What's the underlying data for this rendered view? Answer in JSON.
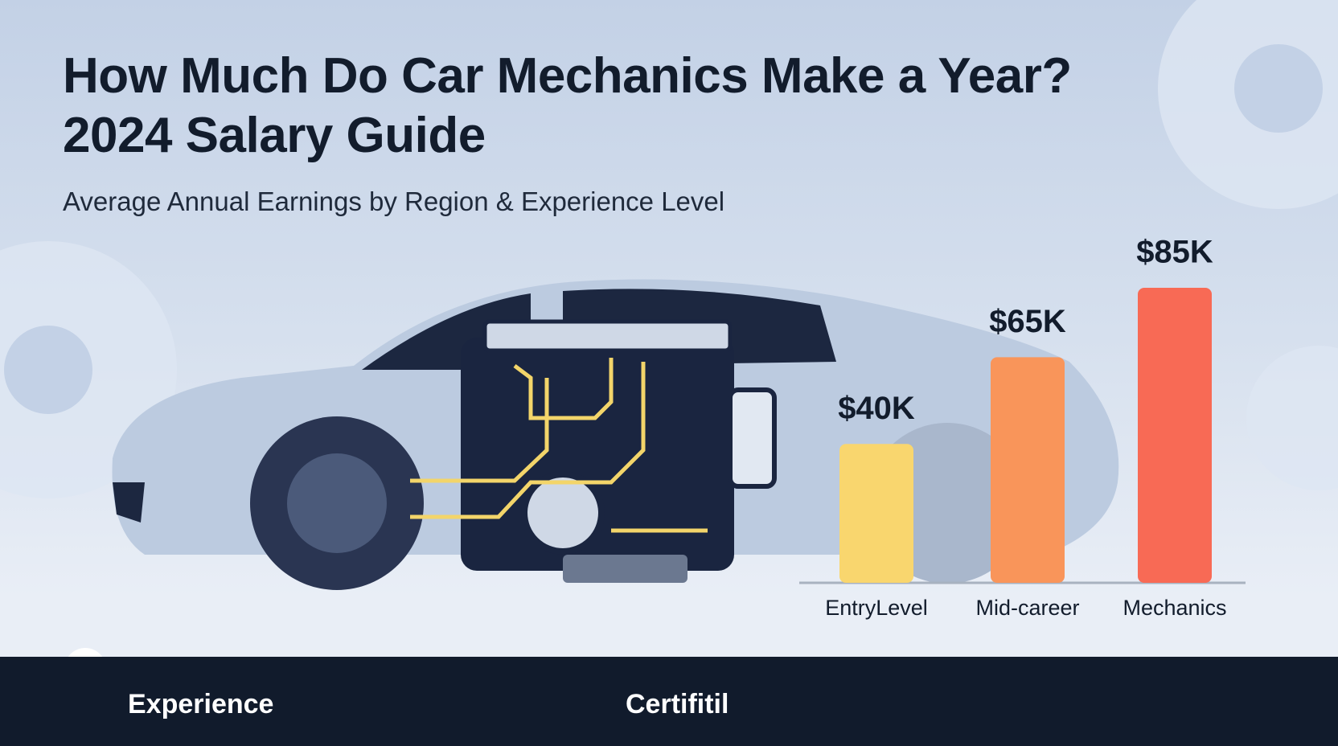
{
  "header": {
    "title": "How Much Do Car Mechanics Make a Year? 2024 Salary Guide",
    "subtitle": "Average Annual Earnings by Region & Experience Level"
  },
  "chart_data": {
    "type": "bar",
    "categories": [
      "EntryLevel",
      "Mid-career",
      "Mechanics"
    ],
    "values": [
      40,
      65,
      85
    ],
    "value_labels": [
      "$40K",
      "$65K",
      "$85K"
    ],
    "colors": [
      "#f9d66e",
      "#f9955a",
      "#f86a55"
    ]
  },
  "footer": {
    "items": [
      "Experience",
      "Certifitil"
    ]
  }
}
